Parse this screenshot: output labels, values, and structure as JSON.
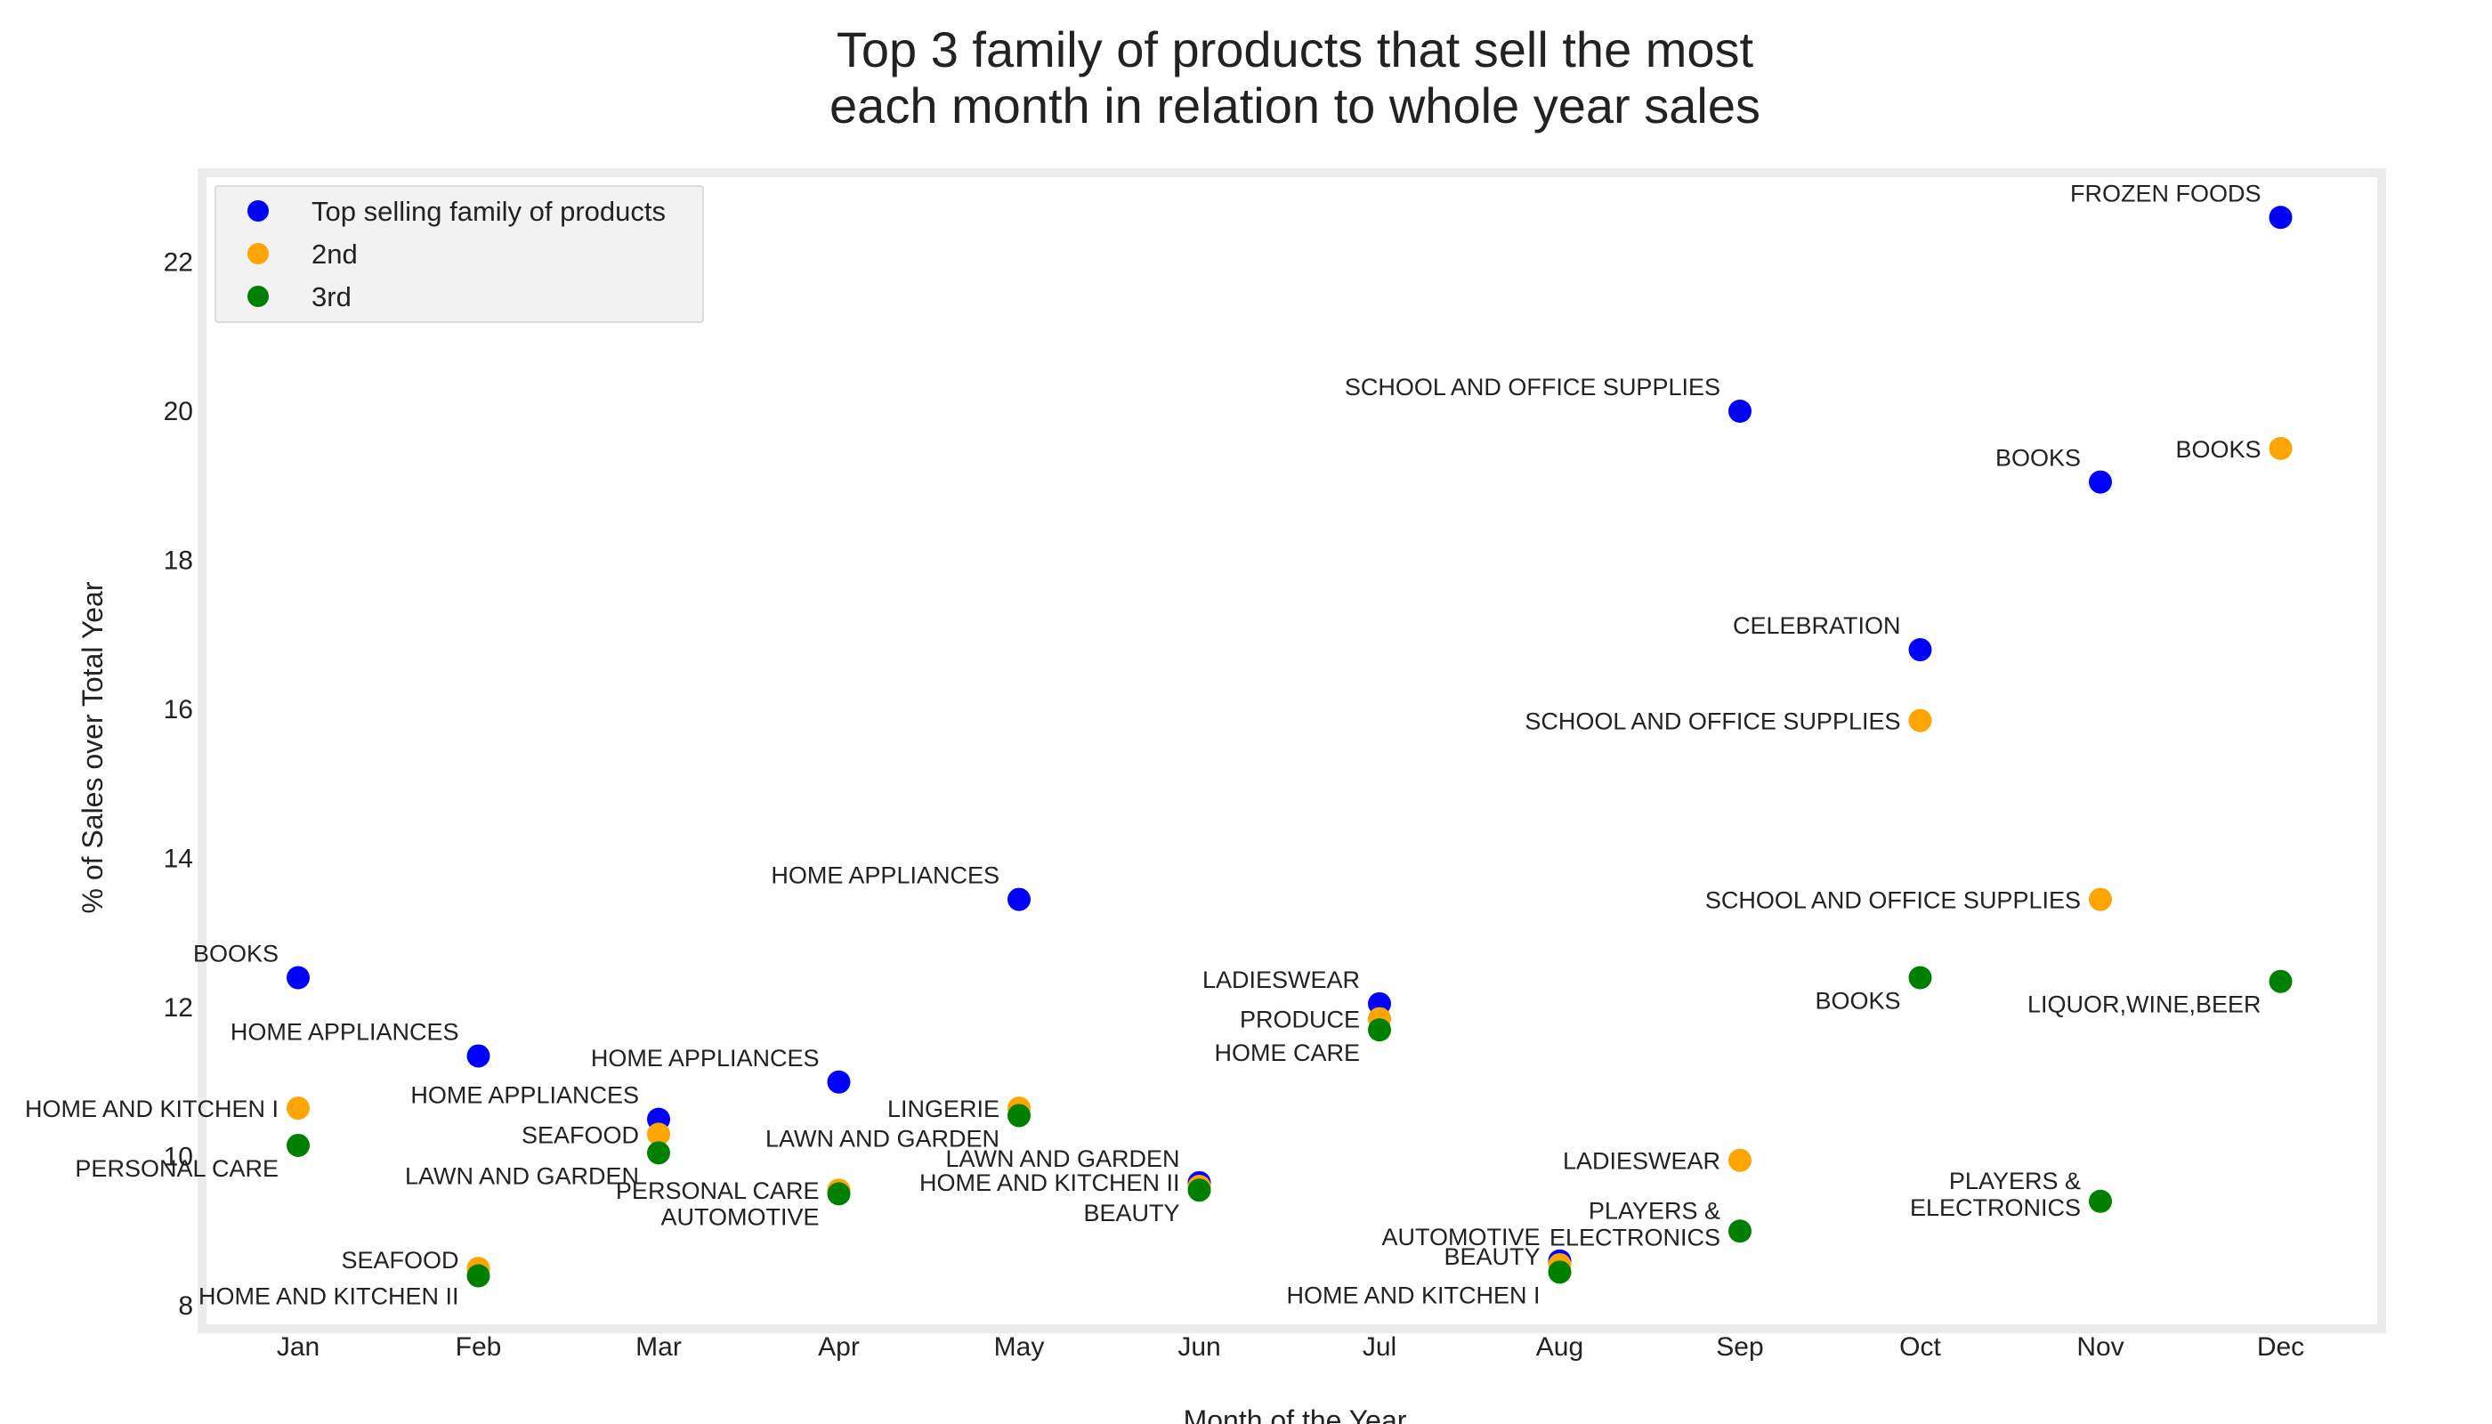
{
  "chart_data": {
    "type": "scatter",
    "title_lines": [
      "Top 3 family of products that sell the most",
      "each month in relation to whole year sales"
    ],
    "xlabel": "Month of the Year",
    "ylabel": "% of Sales over Total Year",
    "categories": [
      "Jan",
      "Feb",
      "Mar",
      "Apr",
      "May",
      "Jun",
      "Jul",
      "Aug",
      "Sep",
      "Oct",
      "Nov",
      "Dec"
    ],
    "yticks": [
      8,
      10,
      12,
      14,
      16,
      18,
      20,
      22
    ],
    "ylim": [
      7.8,
      23.3
    ],
    "grid": false,
    "legend_position": "top-left",
    "series": [
      {
        "name": "Top selling family of products",
        "color": "#0000ff",
        "values": [
          12.4,
          11.35,
          10.5,
          11.0,
          13.45,
          9.65,
          12.05,
          8.6,
          20.0,
          16.8,
          19.05,
          22.6
        ],
        "labels": [
          "BOOKS",
          "HOME APPLIANCES",
          "HOME APPLIANCES",
          "HOME APPLIANCES",
          "HOME APPLIANCES",
          "LAWN AND GARDEN",
          "LADIESWEAR",
          "AUTOMOTIVE",
          "SCHOOL AND OFFICE SUPPLIES",
          "CELEBRATION",
          "BOOKS",
          "FROZEN FOODS"
        ]
      },
      {
        "name": "2nd",
        "color": "#ffa500",
        "values": [
          10.65,
          8.5,
          10.3,
          9.55,
          10.65,
          9.6,
          11.85,
          8.55,
          9.95,
          15.85,
          13.45,
          19.5
        ],
        "labels": [
          "HOME AND KITCHEN I",
          "SEAFOOD",
          "SEAFOOD",
          "PERSONAL CARE",
          "LINGERIE",
          "HOME AND KITCHEN II",
          "PRODUCE",
          "BEAUTY",
          "LADIESWEAR",
          "SCHOOL AND OFFICE SUPPLIES",
          "SCHOOL AND OFFICE SUPPLIES",
          "BOOKS"
        ]
      },
      {
        "name": "3rd",
        "color": "#008000",
        "values": [
          10.15,
          8.4,
          10.05,
          9.5,
          10.55,
          9.55,
          11.7,
          8.45,
          9.0,
          12.4,
          9.4,
          12.35
        ],
        "labels": [
          "PERSONAL CARE",
          "HOME AND KITCHEN II",
          "LAWN AND GARDEN",
          "AUTOMOTIVE",
          "LAWN AND GARDEN",
          "BEAUTY",
          "HOME CARE",
          "HOME AND KITCHEN I",
          "PLAYERS & ELECTRONICS",
          "BOOKS",
          "PLAYERS & ELECTRONICS",
          "LIQUOR,WINE,BEER"
        ]
      }
    ]
  }
}
